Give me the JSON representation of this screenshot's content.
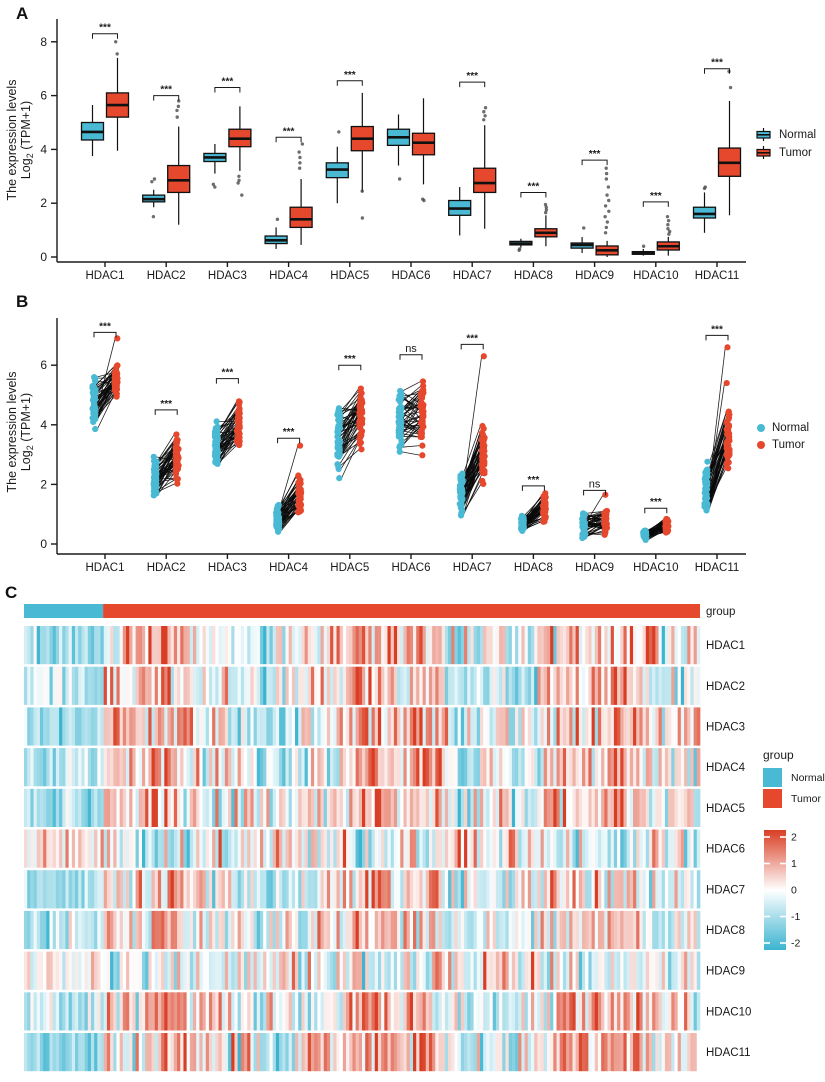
{
  "figure": {
    "background": "#ffffff",
    "panel_labels": [
      "A",
      "B",
      "C"
    ]
  },
  "chart_data": [
    {
      "panel": "A",
      "type": "grouped-boxplot",
      "ylabel": {
        "line1": "The expression levels",
        "log_prefix": "Log",
        "log_sub": "2",
        "log_suffix": " (TPM+1)"
      },
      "yticks": [
        0,
        2,
        4,
        6,
        8
      ],
      "ylim": [
        0,
        8.9
      ],
      "categories": [
        "HDAC1",
        "HDAC2",
        "HDAC3",
        "HDAC4",
        "HDAC5",
        "HDAC6",
        "HDAC7",
        "HDAC8",
        "HDAC9",
        "HDAC10",
        "HDAC11"
      ],
      "significance": [
        "***",
        "***",
        "***",
        "***",
        "***",
        null,
        "***",
        "***",
        "***",
        "***",
        "***"
      ],
      "sig_y": [
        8.3,
        6.0,
        6.3,
        4.45,
        6.55,
        null,
        6.5,
        2.4,
        3.6,
        2.05,
        7.0
      ],
      "series": [
        {
          "name": "Normal",
          "color": "#49B9D4",
          "boxes": [
            [
              3.75,
              4.35,
              4.65,
              5.0,
              5.65
            ],
            [
              1.85,
              2.05,
              2.15,
              2.3,
              2.5
            ],
            [
              3.1,
              3.55,
              3.7,
              3.85,
              4.2
            ],
            [
              0.3,
              0.5,
              0.62,
              0.78,
              1.1
            ],
            [
              2.0,
              2.95,
              3.25,
              3.5,
              4.1
            ],
            [
              3.4,
              4.15,
              4.45,
              4.75,
              5.3
            ],
            [
              0.8,
              1.55,
              1.8,
              2.1,
              2.6
            ],
            [
              0.35,
              0.45,
              0.5,
              0.58,
              0.68
            ],
            [
              0.15,
              0.33,
              0.45,
              0.52,
              0.74
            ],
            [
              0.05,
              0.1,
              0.15,
              0.2,
              0.3
            ],
            [
              0.9,
              1.45,
              1.6,
              1.85,
              2.4
            ]
          ],
          "outliers": [
            [],
            [
              1.5,
              2.8,
              2.9
            ],
            [
              2.6,
              2.7
            ],
            [
              1.4
            ],
            [
              4.65
            ],
            [
              2.9
            ],
            [],
            [
              0.25,
              0.3
            ],
            [
              1.08
            ],
            [
              0.4
            ],
            [
              2.55,
              2.6
            ]
          ]
        },
        {
          "name": "Tumor",
          "color": "#E6482E",
          "boxes": [
            [
              3.95,
              5.2,
              5.65,
              6.1,
              7.4
            ],
            [
              1.2,
              2.4,
              2.85,
              3.4,
              4.85
            ],
            [
              3.2,
              4.1,
              4.4,
              4.75,
              5.6
            ],
            [
              0.45,
              1.1,
              1.4,
              1.85,
              2.9
            ],
            [
              2.4,
              3.95,
              4.4,
              4.85,
              6.1
            ],
            [
              2.7,
              3.8,
              4.25,
              4.6,
              5.9
            ],
            [
              1.05,
              2.4,
              2.75,
              3.3,
              4.9
            ],
            [
              0.4,
              0.75,
              0.9,
              1.05,
              1.55
            ],
            [
              0.0,
              0.08,
              0.25,
              0.41,
              0.6
            ],
            [
              0.05,
              0.26,
              0.4,
              0.56,
              0.75
            ],
            [
              1.55,
              3.0,
              3.5,
              4.05,
              5.8
            ]
          ],
          "outliers": [
            [
              7.55,
              8.0
            ],
            [
              5.2,
              5.45,
              5.6,
              5.8
            ],
            [
              2.3,
              2.75,
              2.85,
              3.0
            ],
            [
              3.3,
              3.5,
              3.7,
              3.9,
              4.2
            ],
            [
              1.45,
              2.45
            ],
            [
              2.1,
              2.15
            ],
            [
              5.1,
              5.25,
              5.4,
              5.55
            ],
            [
              1.65,
              1.75,
              1.85,
              1.95
            ],
            [
              0.9,
              1.1,
              1.3,
              1.5,
              1.7,
              1.9,
              2.1,
              2.3,
              2.6,
              2.9,
              3.1,
              3.3
            ],
            [
              0.85,
              0.95,
              1.05,
              1.2,
              1.35,
              1.5
            ],
            [
              6.3,
              6.9
            ]
          ]
        }
      ]
    },
    {
      "panel": "B",
      "type": "paired-dot-plot",
      "ylabel": {
        "line1": "The expression levels",
        "log_prefix": "Log",
        "log_sub": "2",
        "log_suffix": " (TPM+1)"
      },
      "yticks": [
        0,
        2,
        4,
        6
      ],
      "ylim": [
        0,
        7.6
      ],
      "categories": [
        "HDAC1",
        "HDAC2",
        "HDAC3",
        "HDAC4",
        "HDAC5",
        "HDAC6",
        "HDAC7",
        "HDAC8",
        "HDAC9",
        "HDAC10",
        "HDAC11"
      ],
      "significance": [
        "***",
        "***",
        "***",
        "***",
        "***",
        "ns",
        "***",
        "***",
        "ns",
        "***",
        "***"
      ],
      "sig_y": [
        7.1,
        4.5,
        5.55,
        3.55,
        6.0,
        6.35,
        6.7,
        1.95,
        1.8,
        1.2,
        7.0
      ],
      "n_pairs": 50,
      "groups": [
        {
          "name": "Normal",
          "color": "#49B9D4"
        },
        {
          "name": "Tumor",
          "color": "#E6482E"
        }
      ],
      "pairs_range": [
        {
          "gene": "HDAC1",
          "normal": [
            3.7,
            5.7
          ],
          "tumor": [
            4.4,
            6.5
          ],
          "tumor_extra": [
            6.9
          ]
        },
        {
          "gene": "HDAC2",
          "normal": [
            1.5,
            3.1
          ],
          "tumor": [
            1.6,
            4.2
          ],
          "tumor_extra": []
        },
        {
          "gene": "HDAC3",
          "normal": [
            2.6,
            4.2
          ],
          "tumor": [
            2.8,
            5.4
          ],
          "tumor_extra": []
        },
        {
          "gene": "HDAC4",
          "normal": [
            0.3,
            1.4
          ],
          "tumor": [
            0.5,
            2.7
          ],
          "tumor_extra": [
            3.3
          ]
        },
        {
          "gene": "HDAC5",
          "normal": [
            2.0,
            4.7
          ],
          "tumor": [
            2.7,
            5.7
          ],
          "tumor_extra": []
        },
        {
          "gene": "HDAC6",
          "normal": [
            2.9,
            5.3
          ],
          "tumor": [
            2.6,
            6.0
          ],
          "tumor_extra": []
        },
        {
          "gene": "HDAC7",
          "normal": [
            0.8,
            2.7
          ],
          "tumor": [
            1.3,
            4.6
          ],
          "tumor_extra": [
            6.3
          ]
        },
        {
          "gene": "HDAC8",
          "normal": [
            0.4,
            1.0
          ],
          "tumor": [
            0.5,
            1.9
          ],
          "tumor_extra": []
        },
        {
          "gene": "HDAC9",
          "normal": [
            0.1,
            1.1
          ],
          "tumor": [
            0.05,
            1.4
          ],
          "tumor_extra": [
            1.65
          ]
        },
        {
          "gene": "HDAC10",
          "normal": [
            0.1,
            0.5
          ],
          "tumor": [
            0.15,
            1.05
          ],
          "tumor_extra": []
        },
        {
          "gene": "HDAC11",
          "normal": [
            0.7,
            2.8
          ],
          "tumor": [
            1.8,
            5.0
          ],
          "tumor_extra": [
            6.6,
            5.4
          ]
        }
      ]
    },
    {
      "panel": "C",
      "type": "heatmap",
      "rows": [
        "HDAC1",
        "HDAC2",
        "HDAC3",
        "HDAC4",
        "HDAC5",
        "HDAC6",
        "HDAC7",
        "HDAC8",
        "HDAC9",
        "HDAC10",
        "HDAC11"
      ],
      "n_cols": 212,
      "annotation": {
        "label": "group",
        "groups": [
          {
            "label": "Normal",
            "color": "#49B9D4",
            "fraction": 0.117
          },
          {
            "label": "Tumor",
            "color": "#E6482E",
            "fraction": 0.883
          }
        ]
      },
      "legend_title": "group",
      "colorscale": {
        "ticks": [
          2,
          1,
          0,
          -1,
          -2
        ],
        "min": -2.2,
        "max": 2.2,
        "low": "#3CB4D0",
        "mid": "#FFFFFF",
        "high": "#D93E24"
      },
      "row_profiles": [
        {
          "gene": "HDAC1",
          "normal_z": -1.1,
          "tumor_z": 0.35
        },
        {
          "gene": "HDAC2",
          "normal_z": -0.75,
          "tumor_z": 0.1
        },
        {
          "gene": "HDAC3",
          "normal_z": -1.0,
          "tumor_z": 0.2
        },
        {
          "gene": "HDAC4",
          "normal_z": -0.85,
          "tumor_z": 0.15
        },
        {
          "gene": "HDAC5",
          "normal_z": -1.05,
          "tumor_z": 0.2
        },
        {
          "gene": "HDAC6",
          "normal_z": 0.35,
          "tumor_z": -0.1
        },
        {
          "gene": "HDAC7",
          "normal_z": -0.9,
          "tumor_z": 0.15
        },
        {
          "gene": "HDAC8",
          "normal_z": -0.6,
          "tumor_z": 0.1
        },
        {
          "gene": "HDAC9",
          "normal_z": 0.3,
          "tumor_z": -0.05
        },
        {
          "gene": "HDAC10",
          "normal_z": -0.95,
          "tumor_z": 0.25
        },
        {
          "gene": "HDAC11",
          "normal_z": -1.25,
          "tumor_z": 0.3
        }
      ]
    }
  ]
}
